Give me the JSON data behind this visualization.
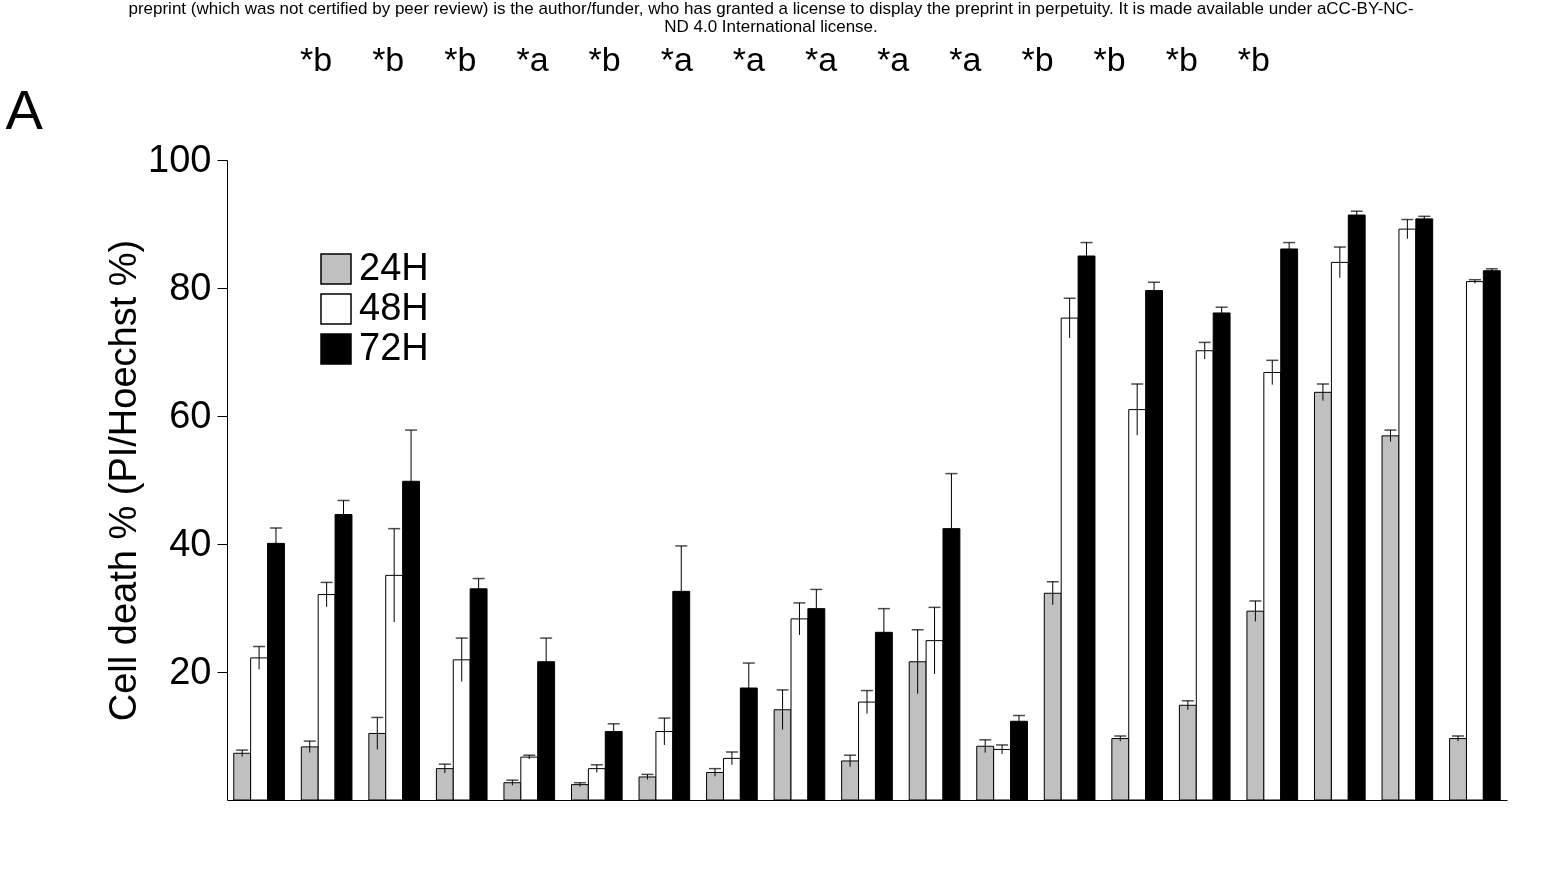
{
  "chart_data": {
    "type": "bar",
    "title": "A",
    "ylabel": "Cell death % (PI/Hoechst %)",
    "categories": [
      null,
      null,
      null,
      null,
      null,
      null,
      null,
      null,
      null,
      null,
      null,
      null,
      null,
      null,
      null,
      null,
      null,
      null,
      null
    ],
    "series": [
      {
        "name": "24H",
        "color": "#c0c0c0",
        "values": [
          7.3,
          8.3,
          10.4,
          4.9,
          2.7,
          2.4,
          3.6,
          4.3,
          14.1,
          6.1,
          21.6,
          8.4,
          32.3,
          9.6,
          14.8,
          29.5,
          63.7,
          56.9,
          9.6
        ],
        "errors": [
          0.5,
          0.9,
          2.5,
          0.7,
          0.4,
          0.3,
          0.4,
          0.6,
          3.1,
          0.9,
          5.0,
          1.0,
          1.8,
          0.4,
          0.7,
          1.6,
          1.3,
          0.9,
          0.4
        ]
      },
      {
        "name": "48H",
        "color": "#ffffff",
        "values": [
          22.2,
          32.1,
          35.1,
          21.9,
          6.7,
          4.9,
          10.7,
          6.5,
          28.3,
          15.3,
          24.9,
          7.9,
          75.3,
          61.0,
          70.2,
          66.8,
          84.0,
          89.2,
          81.0
        ],
        "errors": [
          1.8,
          1.9,
          7.3,
          3.4,
          0.3,
          0.6,
          2.1,
          1.0,
          2.5,
          1.8,
          5.2,
          0.7,
          3.1,
          4.0,
          1.3,
          1.9,
          2.4,
          1.5,
          0.3
        ]
      },
      {
        "name": "72H",
        "color": "#000000",
        "values": [
          40.1,
          44.6,
          49.8,
          33.0,
          21.6,
          10.7,
          32.6,
          17.5,
          29.9,
          26.2,
          42.4,
          12.3,
          85.0,
          79.6,
          76.1,
          86.1,
          91.4,
          90.8,
          82.7
        ],
        "errors": [
          2.4,
          2.2,
          8.0,
          1.6,
          3.7,
          1.2,
          7.1,
          3.9,
          3.0,
          3.7,
          8.6,
          0.9,
          2.1,
          1.3,
          0.9,
          1.0,
          0.6,
          0.4,
          0.3
        ]
      }
    ],
    "ylim": [
      0,
      100
    ],
    "yticks": [
      20,
      40,
      60,
      80,
      100
    ],
    "grid": false,
    "legend": "top left",
    "tick_labels": "y",
    "annotations": [
      "preprint (which was not certified by peer review) is the author/funder, who has granted a license to display the preprint in perpetuity. It is made available under aCC-BY-NC-ND 4.0 International license.",
      "*b",
      "*b",
      "*b",
      "*a",
      "*b",
      "*a",
      "*a",
      "*a",
      "*a",
      "*a",
      "*b",
      "*b",
      "*b",
      "*b"
    ]
  }
}
